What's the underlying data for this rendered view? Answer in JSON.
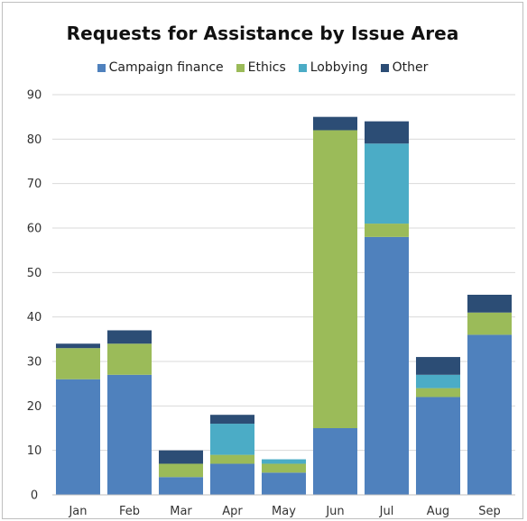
{
  "chart_data": {
    "type": "bar",
    "stacked": true,
    "title": "Requests for Assistance by Issue Area",
    "xlabel": "",
    "ylabel": "",
    "categories": [
      "Jan",
      "Feb",
      "Mar",
      "Apr",
      "May",
      "Jun",
      "Jul",
      "Aug",
      "Sep"
    ],
    "ylim": [
      0,
      90
    ],
    "yticks": [
      0,
      10,
      20,
      30,
      40,
      50,
      60,
      70,
      80,
      90
    ],
    "grid": true,
    "legend_position": "top",
    "series": [
      {
        "name": "Campaign finance",
        "color": "#4F81BD",
        "values": [
          26,
          27,
          4,
          7,
          5,
          15,
          58,
          22,
          36
        ]
      },
      {
        "name": "Ethics",
        "color": "#9BBB59",
        "values": [
          7,
          7,
          3,
          2,
          2,
          67,
          3,
          2,
          5
        ]
      },
      {
        "name": "Lobbying",
        "color": "#4BACC6",
        "values": [
          0,
          0,
          0,
          7,
          1,
          0,
          18,
          3,
          0
        ]
      },
      {
        "name": "Other",
        "color": "#2C4D75",
        "values": [
          1,
          3,
          3,
          2,
          0,
          3,
          5,
          4,
          4
        ]
      }
    ]
  }
}
